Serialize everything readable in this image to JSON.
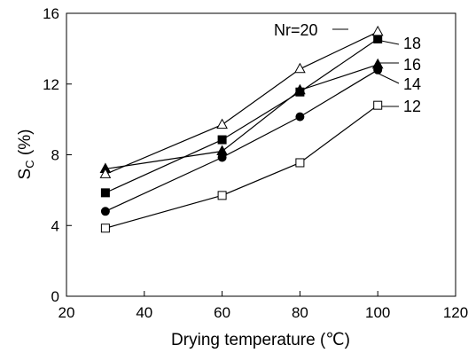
{
  "chart_data": {
    "type": "line",
    "xlabel": "Drying temperature (℃)",
    "ylabel_main": "S",
    "ylabel_sub": "C",
    "ylabel_rest": " (%)",
    "xlim": [
      20,
      120
    ],
    "ylim": [
      0,
      16
    ],
    "xticks": [
      20,
      40,
      60,
      80,
      100,
      120
    ],
    "yticks": [
      0,
      4,
      8,
      12,
      16
    ],
    "grid": false,
    "x": [
      30,
      60,
      80,
      100
    ],
    "series": [
      {
        "name": "12",
        "label": "12",
        "marker": "square-open",
        "values": [
          3.85,
          5.7,
          7.55,
          10.8
        ]
      },
      {
        "name": "14",
        "label": "14",
        "marker": "circle-filled",
        "values": [
          4.8,
          7.85,
          10.15,
          12.8
        ]
      },
      {
        "name": "16",
        "label": "16",
        "marker": "triangle-filled",
        "values": [
          7.2,
          8.2,
          11.65,
          13.1
        ]
      },
      {
        "name": "18",
        "label": "18",
        "marker": "square-filled",
        "values": [
          5.85,
          8.85,
          11.55,
          14.55
        ]
      },
      {
        "name": "20",
        "label": "Nr=20",
        "marker": "triangle-open",
        "values": [
          6.9,
          9.7,
          12.85,
          14.95
        ]
      }
    ]
  }
}
